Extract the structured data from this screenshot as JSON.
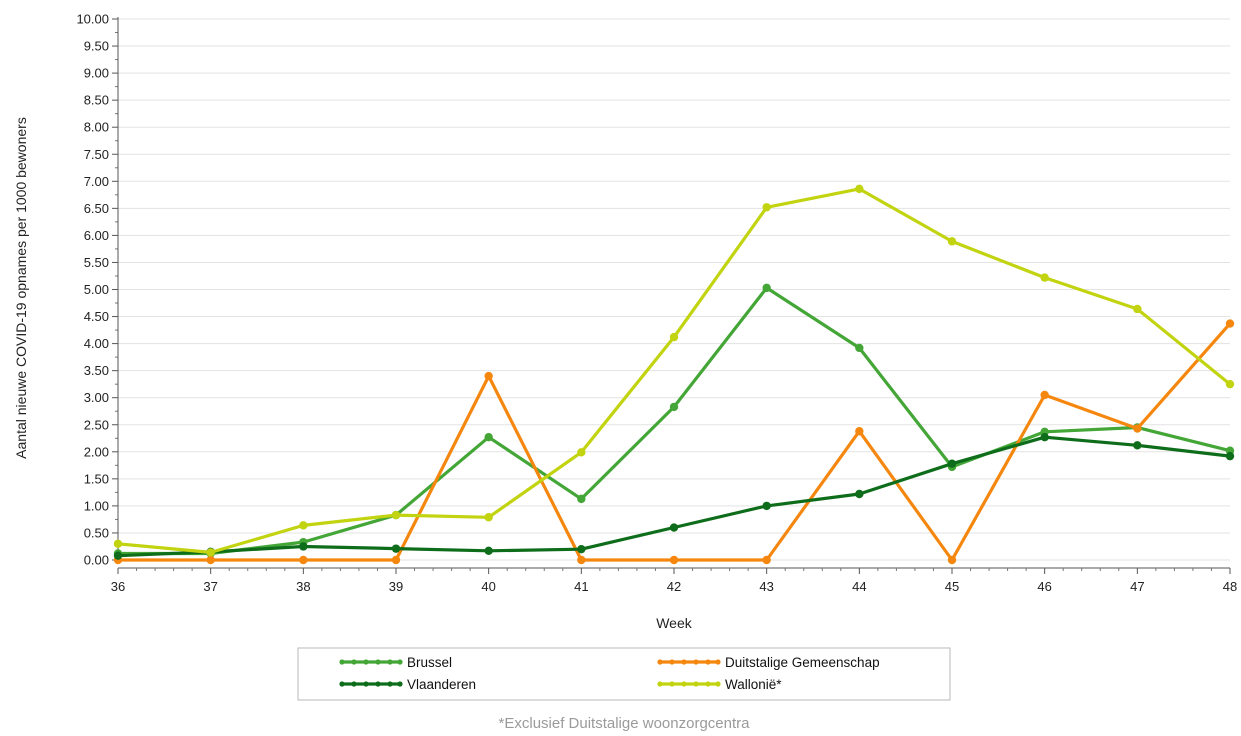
{
  "chart_data": {
    "type": "line",
    "xlabel": "Week",
    "ylabel": "Aantal nieuwe COVID-19 opnames per 1000 bewoners",
    "x": [
      36,
      37,
      38,
      39,
      40,
      41,
      42,
      43,
      44,
      45,
      46,
      47,
      48
    ],
    "xlim": [
      36,
      48
    ],
    "ylim": [
      0,
      10
    ],
    "ytick_step": 0.5,
    "ytick_labels": [
      "0.00",
      "0.50",
      "1.00",
      "1.50",
      "2.00",
      "2.50",
      "3.00",
      "3.50",
      "4.00",
      "4.50",
      "5.00",
      "5.50",
      "6.00",
      "6.50",
      "7.00",
      "7.50",
      "8.00",
      "8.50",
      "9.00",
      "9.50",
      "10.00"
    ],
    "xtick_labels": [
      "36",
      "37",
      "38",
      "39",
      "40",
      "41",
      "42",
      "43",
      "44",
      "45",
      "46",
      "47",
      "48"
    ],
    "grid": "horizontal",
    "legend_position": "bottom",
    "series": [
      {
        "name": "Brussel",
        "color": "#43a636",
        "values": [
          0.12,
          0.12,
          0.33,
          0.83,
          2.27,
          1.13,
          2.83,
          5.03,
          3.92,
          1.72,
          2.37,
          2.45,
          2.02
        ]
      },
      {
        "name": "Duitstalige Gemeenschap",
        "color": "#f5870f",
        "values": [
          0.0,
          0.0,
          0.0,
          0.0,
          3.4,
          0.0,
          0.0,
          0.0,
          2.38,
          0.0,
          3.05,
          2.43,
          4.37
        ]
      },
      {
        "name": "Vlaanderen",
        "color": "#0e6d1a",
        "values": [
          0.08,
          0.15,
          0.25,
          0.21,
          0.17,
          0.2,
          0.6,
          1.0,
          1.22,
          1.78,
          2.27,
          2.12,
          1.92
        ]
      },
      {
        "name": "Wallonië*",
        "color": "#c2d30f",
        "values": [
          0.3,
          0.14,
          0.64,
          0.83,
          0.79,
          1.99,
          4.12,
          6.52,
          6.86,
          5.89,
          5.22,
          4.64,
          3.25
        ]
      }
    ],
    "legend": [
      "Brussel",
      "Duitstalige Gemeenschap",
      "Vlaanderen",
      "Wallonië*"
    ],
    "footnote": "*Exclusief Duitstalige woonzorgcentra"
  }
}
